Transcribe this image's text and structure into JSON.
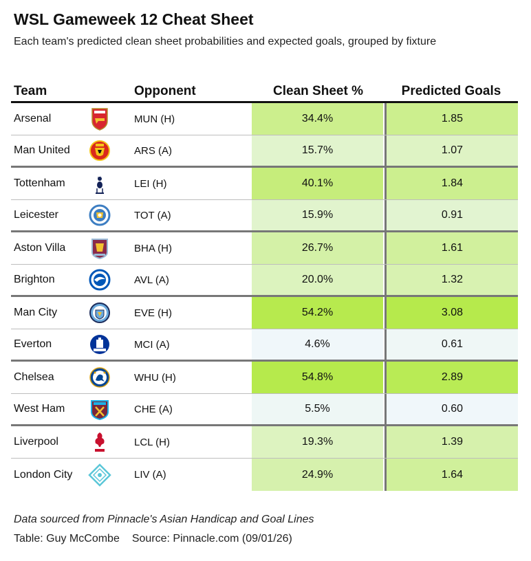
{
  "header": {
    "title": "WSL Gameweek 12 Cheat Sheet",
    "subtitle": "Each team's predicted clean sheet probabilities and expected goals, grouped by fixture"
  },
  "columns": {
    "team": "Team",
    "opponent": "Opponent",
    "clean_sheet": "Clean Sheet %",
    "predicted_goals": "Predicted Goals"
  },
  "colors": {
    "scale_low": "#f0f7fa",
    "scale_high": "#b6ea4c",
    "divider": "#777777"
  },
  "chart_data": {
    "type": "table",
    "title": "WSL Gameweek 12 Cheat Sheet",
    "subtitle": "Each team's predicted clean sheet probabilities and expected goals, grouped by fixture",
    "columns": [
      "Team",
      "Opponent",
      "Clean Sheet %",
      "Predicted Goals"
    ],
    "rows": [
      {
        "team": "Arsenal",
        "logo": "arsenal-crest-icon",
        "opponent": "MUN (H)",
        "clean_sheet": "34.4%",
        "cs_value": 34.4,
        "goals": "1.85",
        "goals_value": 1.85
      },
      {
        "team": "Man United",
        "logo": "man-united-crest-icon",
        "opponent": "ARS (A)",
        "clean_sheet": "15.7%",
        "cs_value": 15.7,
        "goals": "1.07",
        "goals_value": 1.07
      },
      {
        "team": "Tottenham",
        "logo": "tottenham-crest-icon",
        "opponent": "LEI (H)",
        "clean_sheet": "40.1%",
        "cs_value": 40.1,
        "goals": "1.84",
        "goals_value": 1.84
      },
      {
        "team": "Leicester",
        "logo": "leicester-crest-icon",
        "opponent": "TOT (A)",
        "clean_sheet": "15.9%",
        "cs_value": 15.9,
        "goals": "0.91",
        "goals_value": 0.91
      },
      {
        "team": "Aston Villa",
        "logo": "aston-villa-crest-icon",
        "opponent": "BHA (H)",
        "clean_sheet": "26.7%",
        "cs_value": 26.7,
        "goals": "1.61",
        "goals_value": 1.61
      },
      {
        "team": "Brighton",
        "logo": "brighton-crest-icon",
        "opponent": "AVL (A)",
        "clean_sheet": "20.0%",
        "cs_value": 20.0,
        "goals": "1.32",
        "goals_value": 1.32
      },
      {
        "team": "Man City",
        "logo": "man-city-crest-icon",
        "opponent": "EVE (H)",
        "clean_sheet": "54.2%",
        "cs_value": 54.2,
        "goals": "3.08",
        "goals_value": 3.08
      },
      {
        "team": "Everton",
        "logo": "everton-crest-icon",
        "opponent": "MCI (A)",
        "clean_sheet": "4.6%",
        "cs_value": 4.6,
        "goals": "0.61",
        "goals_value": 0.61
      },
      {
        "team": "Chelsea",
        "logo": "chelsea-crest-icon",
        "opponent": "WHU (H)",
        "clean_sheet": "54.8%",
        "cs_value": 54.8,
        "goals": "2.89",
        "goals_value": 2.89
      },
      {
        "team": "West Ham",
        "logo": "west-ham-crest-icon",
        "opponent": "CHE (A)",
        "clean_sheet": "5.5%",
        "cs_value": 5.5,
        "goals": "0.60",
        "goals_value": 0.6
      },
      {
        "team": "Liverpool",
        "logo": "liverpool-crest-icon",
        "opponent": "LCL (H)",
        "clean_sheet": "19.3%",
        "cs_value": 19.3,
        "goals": "1.39",
        "goals_value": 1.39
      },
      {
        "team": "London City",
        "logo": "london-city-crest-icon",
        "opponent": "LIV (A)",
        "clean_sheet": "24.9%",
        "cs_value": 24.9,
        "goals": "1.64",
        "goals_value": 1.64
      }
    ],
    "grouping": "fixture pairs"
  },
  "footer": {
    "note": "Data sourced from Pinnacle's Asian Handicap and Goal Lines",
    "table_credit": "Table: Guy McCombe",
    "source": "Source: Pinnacle.com (09/01/26)"
  }
}
